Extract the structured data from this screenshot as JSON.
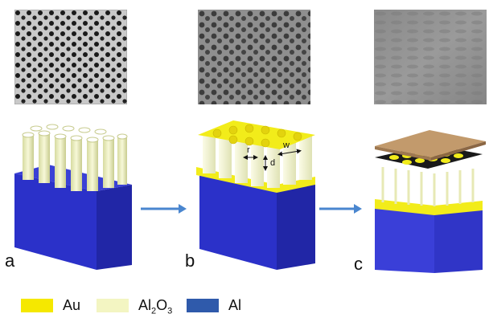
{
  "panels": [
    {
      "label": "a"
    },
    {
      "label": "b",
      "dimensions": [
        "r",
        "d",
        "w"
      ]
    },
    {
      "label": "c"
    }
  ],
  "legend": [
    {
      "name": "Au",
      "color": "#f5e800"
    },
    {
      "name": "Al2O3",
      "main": "Al",
      "sub": "2",
      "rest": "O",
      "sub2": "3",
      "color": "#f3f5c2"
    },
    {
      "name": "Al",
      "color": "#2f5aab"
    }
  ],
  "colors": {
    "aluminum": "#3338c8",
    "alumina": "#f1f3c6",
    "gold": "#f2ec1a",
    "cap": "#c29a6c",
    "arrow": "#4a86cf"
  }
}
